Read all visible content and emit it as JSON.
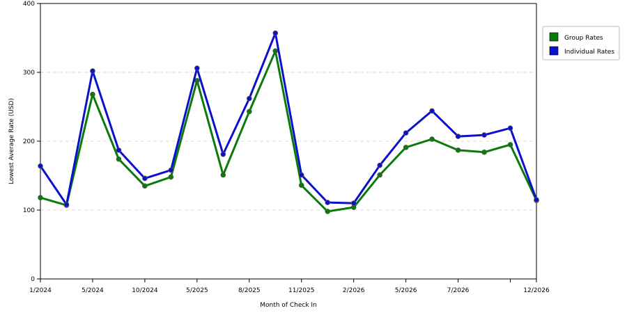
{
  "chart_data": {
    "type": "line",
    "xlabel": "Month of Check In",
    "ylabel": "Lowest Average Rate (USD)",
    "ylim": [
      0,
      400
    ],
    "yticks": [
      0,
      100,
      200,
      300,
      400
    ],
    "grid": "horizontal dashed",
    "legend_position": "right",
    "x_tick_labels": [
      {
        "index": 0,
        "label": "1/2024"
      },
      {
        "index": 2,
        "label": "5/2024"
      },
      {
        "index": 4,
        "label": "10/2024"
      },
      {
        "index": 6,
        "label": "5/2025"
      },
      {
        "index": 8,
        "label": "8/2025"
      },
      {
        "index": 10,
        "label": "11/2025"
      },
      {
        "index": 12,
        "label": "2/2026"
      },
      {
        "index": 14,
        "label": "5/2026"
      },
      {
        "index": 16,
        "label": "7/2026"
      },
      {
        "index": 18,
        "label": ""
      },
      {
        "index": 19,
        "label": "12/2026"
      }
    ],
    "series": [
      {
        "name": "Group Rates",
        "color": "#0a7a0a",
        "values": [
          118,
          107,
          268,
          174,
          135,
          148,
          288,
          151,
          243,
          331,
          136,
          98,
          104,
          151,
          191,
          203,
          187,
          184,
          195,
          114
        ]
      },
      {
        "name": "Individual Rates",
        "color": "#0a10cc",
        "values": [
          164,
          108,
          302,
          187,
          146,
          158,
          306,
          181,
          262,
          357,
          151,
          111,
          110,
          165,
          212,
          244,
          207,
          209,
          219,
          115
        ]
      }
    ]
  }
}
